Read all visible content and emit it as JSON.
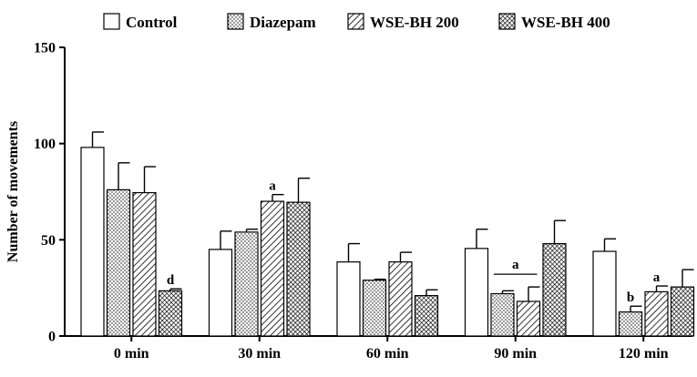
{
  "chart_data": {
    "type": "bar",
    "title": "",
    "xlabel": "",
    "ylabel": "Number of movements",
    "ylim": [
      0,
      150
    ],
    "yticks": [
      0,
      50,
      100,
      150
    ],
    "categories": [
      "0 min",
      "30 min",
      "60 min",
      "90 min",
      "120 min"
    ],
    "series": [
      {
        "name": "Control",
        "pattern": "white",
        "values": [
          98,
          45,
          38.5,
          45.5,
          44
        ],
        "errors": [
          8,
          9.5,
          9.5,
          10,
          6.5
        ]
      },
      {
        "name": "Diazepam",
        "pattern": "dots",
        "values": [
          76,
          54,
          29,
          22,
          12.5
        ],
        "errors": [
          14,
          1.5,
          0.5,
          1.5,
          3
        ]
      },
      {
        "name": "WSE-BH 200",
        "pattern": "hatch",
        "values": [
          74.5,
          70,
          38.5,
          18,
          23
        ],
        "errors": [
          13.5,
          3.5,
          5,
          7.5,
          3
        ]
      },
      {
        "name": "WSE-BH 400",
        "pattern": "cross",
        "values": [
          23.5,
          69.5,
          21,
          48,
          25.5
        ],
        "errors": [
          1,
          12.5,
          3,
          12,
          9
        ]
      }
    ],
    "annotations": [
      {
        "text": "d",
        "category": 0,
        "series": 3
      },
      {
        "text": "a",
        "category": 1,
        "series": 2
      },
      {
        "text": "a",
        "category": 3,
        "series_span": [
          1,
          2
        ],
        "bracket": true
      },
      {
        "text": "b",
        "category": 4,
        "series": 1
      },
      {
        "text": "a",
        "category": 4,
        "series": 2
      }
    ],
    "legend_position": "top",
    "grid": false
  }
}
